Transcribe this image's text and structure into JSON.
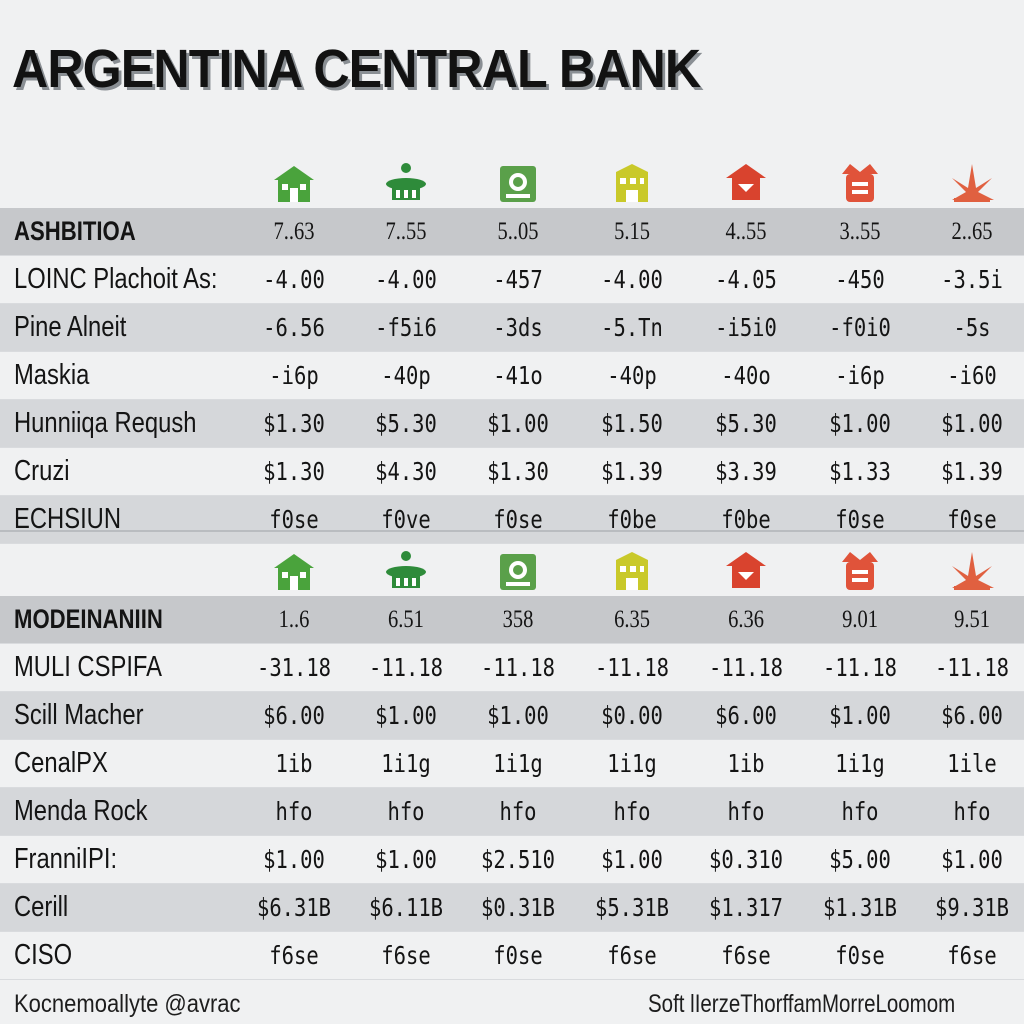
{
  "title": "ARGENTINA CENTRAL BANK",
  "icons": [
    {
      "name": "house-icon",
      "color": "#4aa33c"
    },
    {
      "name": "temple-icon",
      "color": "#2e8b3a"
    },
    {
      "name": "safe-icon",
      "color": "#5aa04a"
    },
    {
      "name": "building-icon",
      "color": "#c9c92a"
    },
    {
      "name": "pagoda-icon",
      "color": "#d9432e"
    },
    {
      "name": "tower-icon",
      "color": "#e0533a"
    },
    {
      "name": "fan-icon",
      "color": "#e06040"
    }
  ],
  "section1": {
    "rows": [
      {
        "label": "ASHBITIOA",
        "values": [
          "7..63",
          "7..55",
          "5..05",
          "5.15",
          "4..55",
          "3..55",
          "2..65"
        ]
      },
      {
        "label": "LOINC Plachoit As:",
        "values": [
          "-4.00",
          "-4.00",
          "-457",
          "-4.00",
          "-4.05",
          "-450",
          "-3.5i"
        ]
      },
      {
        "label": "Pine Alneit",
        "values": [
          "-6.56",
          "-f5i6",
          "-3ds",
          "-5.Tn",
          "-i5i0",
          "-f0i0",
          "-5s"
        ]
      },
      {
        "label": "Maskia",
        "values": [
          "-i6p",
          "-40p",
          "-41o",
          "-40p",
          "-40o",
          "-i6p",
          "-i60"
        ]
      },
      {
        "label": "Hunniiqa Reqush",
        "values": [
          "$1.30",
          "$5.30",
          "$1.00",
          "$1.50",
          "$5.30",
          "$1.00",
          "$1.00"
        ]
      },
      {
        "label": "Cruzi",
        "values": [
          "$1.30",
          "$4.30",
          "$1.30",
          "$1.39",
          "$3.39",
          "$1.33",
          "$1.39"
        ]
      },
      {
        "label": "ECHSIUN",
        "values": [
          "f0se",
          "f0ve",
          "f0se",
          "f0be",
          "f0be",
          "f0se",
          "f0se"
        ]
      }
    ]
  },
  "section2": {
    "rows": [
      {
        "label": "MODEINANIIN",
        "values": [
          "1..6",
          "6.51",
          "358",
          "6.35",
          "6.36",
          "9.01",
          "9.51"
        ]
      },
      {
        "label": "MULI CSPIFA",
        "values": [
          "-31.18",
          "-11.18",
          "-11.18",
          "-11.18",
          "-11.18",
          "-11.18",
          "-11.18"
        ]
      },
      {
        "label": "Scill Macher",
        "values": [
          "$6.00",
          "$1.00",
          "$1.00",
          "$0.00",
          "$6.00",
          "$1.00",
          "$6.00"
        ]
      },
      {
        "label": "CenalPX",
        "values": [
          "1ib",
          "1i1g",
          "1i1g",
          "1i1g",
          "1ib",
          "1i1g",
          "1ile"
        ]
      },
      {
        "label": "Menda Rock",
        "values": [
          "hfo",
          "hfo",
          "hfo",
          "hfo",
          "hfo",
          "hfo",
          "hfo"
        ]
      },
      {
        "label": "FranniIPI:",
        "values": [
          "$1.00",
          "$1.00",
          "$2.510",
          "$1.00",
          "$0.310",
          "$5.00",
          "$1.00"
        ]
      },
      {
        "label": "Cerill",
        "values": [
          "$6.31B",
          "$6.11B",
          "$0.31B",
          "$5.31B",
          "$1.317",
          "$1.31B",
          "$9.31B"
        ]
      },
      {
        "label": "CISO",
        "values": [
          "f6se",
          "f6se",
          "f0se",
          "f6se",
          "f6se",
          "f0se",
          "f6se"
        ]
      }
    ]
  },
  "footer": {
    "left": "Kocnemoallyte @avrac",
    "right": "Soft lIerzeThorffamMorreLoomom"
  }
}
